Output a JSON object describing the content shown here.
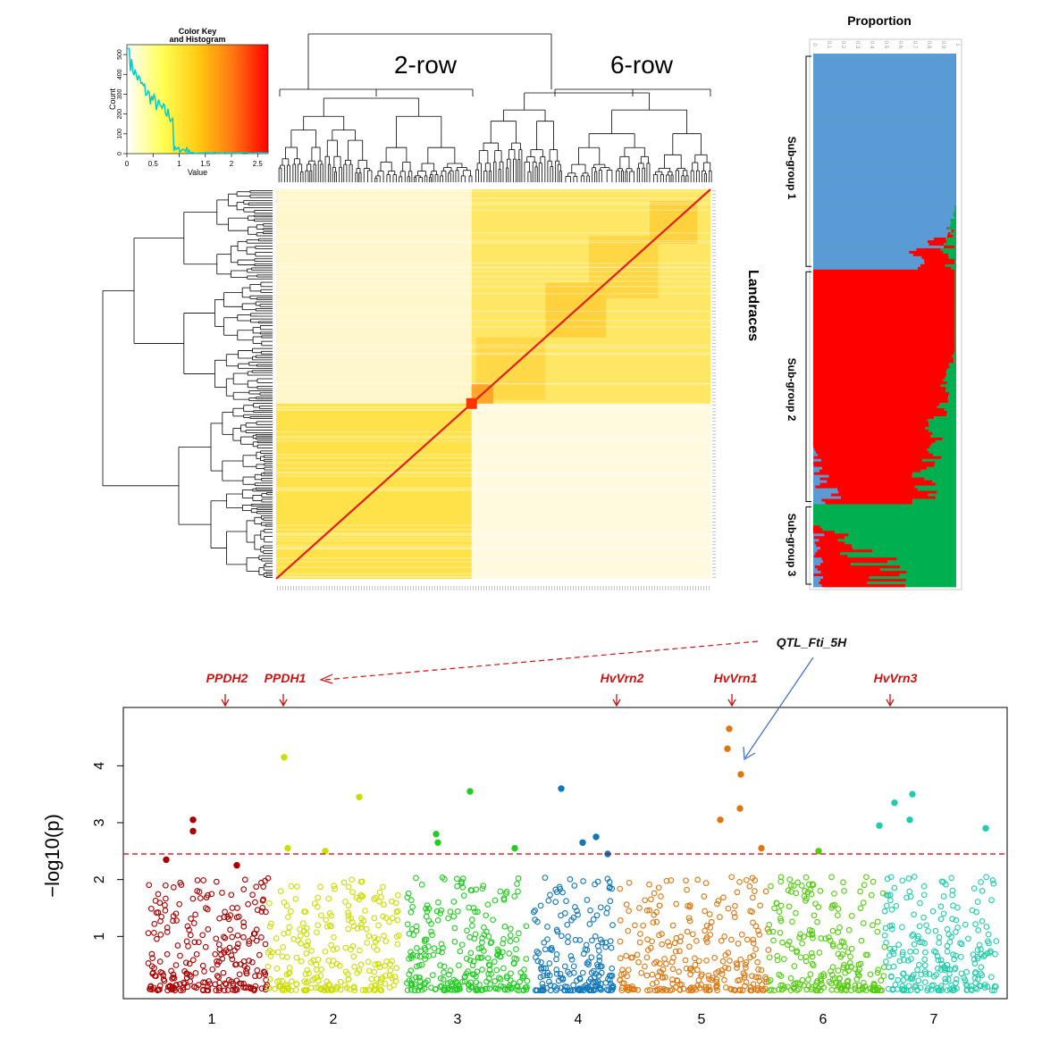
{
  "chart_data": [
    {
      "type": "heatmap",
      "panel": "kinship",
      "color_key": {
        "title": "Color Key",
        "subtitle": "and Histogram",
        "xlabel": "Value",
        "ylabel": "Count",
        "x_ticks": [
          "0",
          "0.5",
          "1",
          "1.5",
          "2",
          "2.5"
        ],
        "y_ticks": [
          "0",
          "100",
          "200",
          "300",
          "400",
          "500"
        ],
        "xlim": [
          0,
          2.7
        ],
        "ylim": [
          0,
          550
        ],
        "colors": [
          "#ffffff",
          "#ffff66",
          "#ffcc00",
          "#ff8800",
          "#ff0000"
        ]
      },
      "column_groups": [
        {
          "label": "2-row"
        },
        {
          "label": "6-row"
        }
      ],
      "row_axis_label": "Landraces"
    },
    {
      "type": "bar",
      "panel": "structure",
      "title": "Proportion",
      "x_ticks": [
        "0",
        "0.1",
        "0.2",
        "0.3",
        "0.4",
        "0.5",
        "0.6",
        "0.7",
        "0.8",
        "0.9",
        "1"
      ],
      "xlim": [
        0,
        1
      ],
      "series": [
        {
          "name": "Sub-group 1",
          "color": "#5b9bd5"
        },
        {
          "name": "Sub-group 2",
          "color": "#ff0000"
        },
        {
          "name": "Sub-group 3",
          "color": "#00b050"
        }
      ],
      "groups": [
        {
          "label": "Sub-group 1",
          "from": 0,
          "to": 0.404
        },
        {
          "label": "Sub-group 2",
          "from": 0.404,
          "to": 0.845
        },
        {
          "label": "Sub-group 3",
          "from": 0.845,
          "to": 1
        }
      ]
    },
    {
      "type": "scatter",
      "panel": "manhattan",
      "ylabel": "−log10(p)",
      "xlabel": "",
      "ylim": [
        0,
        4.9
      ],
      "y_ticks": [
        1,
        2,
        3,
        4
      ],
      "threshold": 2.45,
      "chromosomes": [
        {
          "label": "1",
          "color": "#aa0000"
        },
        {
          "label": "2",
          "color": "#ccdd00"
        },
        {
          "label": "3",
          "color": "#22cc22"
        },
        {
          "label": "4",
          "color": "#1177bb"
        },
        {
          "label": "5",
          "color": "#dd7711"
        },
        {
          "label": "6",
          "color": "#55cc11"
        },
        {
          "label": "7",
          "color": "#22ccaa"
        }
      ],
      "top_points": [
        {
          "chr": 1,
          "y": 3.05
        },
        {
          "chr": 1,
          "y": 2.85
        },
        {
          "chr": 1,
          "y": 2.35
        },
        {
          "chr": 1,
          "y": 2.25
        },
        {
          "chr": 2,
          "y": 4.15
        },
        {
          "chr": 2,
          "y": 3.45
        },
        {
          "chr": 2,
          "y": 2.55
        },
        {
          "chr": 2,
          "y": 2.5
        },
        {
          "chr": 3,
          "y": 3.55
        },
        {
          "chr": 3,
          "y": 2.8
        },
        {
          "chr": 3,
          "y": 2.65
        },
        {
          "chr": 3,
          "y": 2.55
        },
        {
          "chr": 4,
          "y": 3.6
        },
        {
          "chr": 4,
          "y": 2.75
        },
        {
          "chr": 4,
          "y": 2.65
        },
        {
          "chr": 4,
          "y": 2.45
        },
        {
          "chr": 5,
          "y": 4.65
        },
        {
          "chr": 5,
          "y": 4.3
        },
        {
          "chr": 5,
          "y": 3.85
        },
        {
          "chr": 5,
          "y": 3.25
        },
        {
          "chr": 5,
          "y": 3.05
        },
        {
          "chr": 5,
          "y": 2.55
        },
        {
          "chr": 6,
          "y": 2.5
        },
        {
          "chr": 7,
          "y": 3.5
        },
        {
          "chr": 7,
          "y": 3.35
        },
        {
          "chr": 7,
          "y": 3.05
        },
        {
          "chr": 7,
          "y": 2.95
        },
        {
          "chr": 7,
          "y": 2.9
        }
      ],
      "annotations": [
        {
          "label": "PPDH2",
          "chr": 1,
          "arrow": "down"
        },
        {
          "label": "PPDH1",
          "chr": 2,
          "arrow": "down"
        },
        {
          "label": "HvVrn2",
          "chr": 4,
          "arrow": "down"
        },
        {
          "label": "HvVrn1",
          "chr": 5,
          "arrow": "down"
        },
        {
          "label": "HvVrn3",
          "chr": 7,
          "arrow": "down"
        },
        {
          "label": "QTL_Fti_5H",
          "chr": 5,
          "arrow": "to-point"
        }
      ]
    }
  ]
}
